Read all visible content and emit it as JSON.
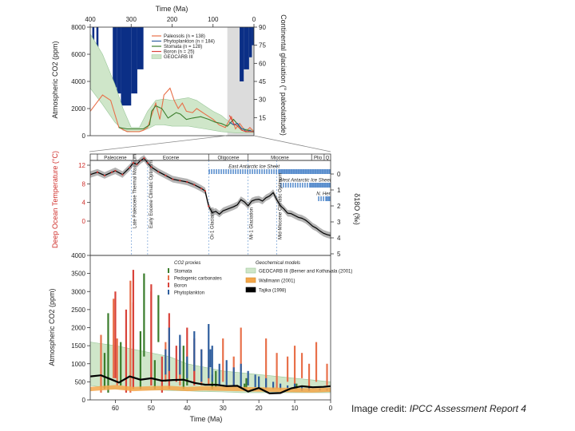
{
  "credit": {
    "prefix": "Image credit: ",
    "source": "IPCC Assessment Report 4"
  },
  "colors": {
    "paleosols": "#e8704a",
    "phytoplankton": "#2f5e9e",
    "stomata": "#3b7d2c",
    "boron": "#d9433b",
    "geocarb": "#cfe6c9",
    "glaciation": "#0b2f86",
    "temp": "#d0312d",
    "wallmann": "#f4a64a",
    "tajika": "#000000"
  },
  "chart_data": [
    {
      "type": "area",
      "title": "Time (Ma)",
      "ylabel": "Atmospheric CO2 (ppm)",
      "y2label": "Continental glaciation (° paleolatitude)",
      "xlim": [
        400,
        0
      ],
      "ylim": [
        0,
        8000
      ],
      "x_ticks": [
        "400",
        "300",
        "200",
        "100",
        "0"
      ],
      "y_ticks": [
        "0",
        "2000",
        "4000",
        "6000",
        "8000"
      ],
      "y2_ticks": [
        "15",
        "30",
        "45",
        "60",
        "75",
        "90"
      ],
      "legend": [
        "Paleosols (n = 138)",
        "Phytoplankton (n = 184)",
        "Stomata (n = 128)",
        "Boron (n = 25)",
        "GEOCARB III"
      ],
      "legend_position": "top-right",
      "geocarb_x": [
        400,
        370,
        340,
        320,
        300,
        280,
        260,
        240,
        220,
        200,
        180,
        160,
        140,
        120,
        100,
        80,
        60,
        40,
        20,
        0
      ],
      "geocarb_low": [
        3500,
        2300,
        1000,
        400,
        300,
        300,
        500,
        800,
        800,
        700,
        700,
        700,
        600,
        500,
        400,
        300,
        250,
        200,
        200,
        200
      ],
      "geocarb_high": [
        7500,
        6000,
        3800,
        2000,
        600,
        600,
        1800,
        2600,
        2700,
        2600,
        2700,
        2800,
        2600,
        2200,
        1800,
        1500,
        1000,
        700,
        500,
        400
      ],
      "series": [
        {
          "name": "Paleosols",
          "x": [
            400,
            385,
            370,
            350,
            330,
            310,
            295,
            280,
            270,
            260,
            250,
            240,
            230,
            220,
            205,
            195,
            185,
            175,
            165,
            150,
            140,
            120,
            100,
            85,
            70,
            55,
            45,
            35,
            20,
            10,
            0
          ],
          "values": [
            1800,
            2400,
            3000,
            2600,
            600,
            300,
            300,
            300,
            400,
            600,
            1500,
            2400,
            1200,
            3000,
            3500,
            2600,
            2000,
            2400,
            1800,
            1700,
            2000,
            1600,
            1200,
            800,
            600,
            1400,
            500,
            900,
            300,
            600,
            300
          ]
        },
        {
          "name": "Stomata",
          "x": [
            330,
            310,
            290,
            270,
            255,
            250,
            240,
            225,
            210,
            200,
            190,
            180,
            165,
            150,
            130,
            110,
            95,
            80,
            65,
            50,
            30,
            15,
            0
          ],
          "values": [
            600,
            500,
            500,
            500,
            800,
            1800,
            2200,
            2000,
            1300,
            1500,
            1700,
            1600,
            1200,
            1300,
            1400,
            1200,
            1000,
            900,
            700,
            1200,
            500,
            400,
            300
          ]
        },
        {
          "name": "Phytoplankton",
          "x": [
            60,
            50,
            40,
            35,
            30,
            25,
            20,
            15,
            10,
            5,
            0
          ],
          "values": [
            1000,
            800,
            900,
            700,
            500,
            500,
            300,
            300,
            400,
            300,
            300
          ]
        },
        {
          "name": "Boron",
          "x": [
            60,
            50,
            45,
            40,
            30,
            20,
            10,
            0
          ],
          "values": [
            1500,
            900,
            800,
            700,
            400,
            300,
            300,
            280
          ]
        }
      ],
      "glaciation": [
        {
          "from": 395,
          "to": 390,
          "paleolatitude": 60
        },
        {
          "from": 385,
          "to": 380,
          "paleolatitude": 60
        },
        {
          "from": 345,
          "to": 335,
          "paleolatitude": 40
        },
        {
          "from": 335,
          "to": 325,
          "paleolatitude": 35
        },
        {
          "from": 325,
          "to": 300,
          "paleolatitude": 25
        },
        {
          "from": 300,
          "to": 285,
          "paleolatitude": 35
        },
        {
          "from": 285,
          "to": 270,
          "paleolatitude": 55
        },
        {
          "from": 35,
          "to": 25,
          "paleolatitude": 45
        },
        {
          "from": 25,
          "to": 12,
          "paleolatitude": 55
        },
        {
          "from": 12,
          "to": 5,
          "paleolatitude": 65
        },
        {
          "from": 5,
          "to": 0,
          "paleolatitude": 75
        }
      ],
      "highlight": {
        "from": 65,
        "to": 0
      }
    },
    {
      "type": "line",
      "ylabel": "Deep Ocean Temperature (°C)",
      "y2label": "δ18O (‰)",
      "xlim": [
        67,
        0
      ],
      "ylim": [
        0,
        14
      ],
      "y_ticks": [
        "0",
        "4",
        "8",
        "12"
      ],
      "y2_ticks": [
        "0",
        "1",
        "2",
        "3",
        "4",
        "5"
      ],
      "epochs": [
        "Paleocene",
        "Eocene",
        "Oligocene",
        "Miocene",
        "Plio",
        "Q"
      ],
      "epoch_bounds": [
        65,
        55,
        34,
        23,
        5.3,
        1.8,
        0
      ],
      "ice_sheet_labels": [
        "East Antarctic Ice Sheet",
        "West Antarctic Ice Sheet",
        "N. Hemisphere Ice Sheets"
      ],
      "event_labels": [
        "Late Paleocene Thermal Maximum",
        "Early Eocene Climatic Optimum",
        "Oi-1 Glaciation",
        "Mi-1 Glaciation",
        "Mid-Miocene Climatic Optimum"
      ],
      "x": [
        67,
        65,
        63,
        61,
        60,
        58,
        56,
        55,
        54,
        53,
        52,
        51,
        50,
        48,
        46,
        44,
        42,
        40,
        38,
        36,
        35,
        34,
        33,
        32,
        31,
        30,
        29,
        28,
        27,
        26,
        25,
        24,
        23,
        22,
        21,
        20,
        19,
        18,
        17,
        16,
        15,
        14,
        13,
        12,
        11,
        10,
        9,
        8,
        7,
        6,
        5,
        4,
        3,
        2,
        1,
        0
      ],
      "values": [
        10,
        10.5,
        9.8,
        10.5,
        10.8,
        10,
        11.5,
        12.5,
        12.2,
        13,
        13.5,
        12.5,
        11.6,
        10.6,
        9.8,
        9,
        8.7,
        8.4,
        7.8,
        7,
        6.5,
        3.2,
        1.8,
        2.1,
        1.5,
        2.2,
        2.5,
        2.8,
        3.1,
        3.5,
        4.6,
        4.1,
        3.3,
        4.3,
        4.6,
        4.7,
        4.3,
        5,
        5.4,
        6.1,
        4.6,
        3.3,
        2.6,
        1.7,
        1.6,
        1.2,
        0.8,
        0.6,
        0.2,
        -0.4,
        -1.1,
        -1.5,
        -2.1,
        -2.6,
        -2.9,
        -3.1
      ]
    },
    {
      "type": "scatter",
      "title": "CO2 proxies",
      "title2": "Geochemical models",
      "xlabel": "Time (Ma)",
      "ylabel": "Atmospheric CO2 (ppm)",
      "xlim": [
        67,
        0
      ],
      "ylim": [
        0,
        4000
      ],
      "x_ticks": [
        "60",
        "50",
        "40",
        "30",
        "20",
        "10",
        "0"
      ],
      "y_ticks": [
        "0",
        "500",
        "1000",
        "1500",
        "2000",
        "2500",
        "3000",
        "3500",
        "4000"
      ],
      "legend_proxies": [
        "Stomata",
        "Pedogenic carbonates",
        "Boron",
        "Phytoplankton"
      ],
      "legend_models": [
        "GEOCARB III (Berner and Kothavala (2001)",
        "Wallmann (2001)",
        "Tajika (1998)"
      ],
      "legend_position": "top-right",
      "geocarb_x": [
        67,
        60,
        55,
        50,
        45,
        40,
        35,
        30,
        25,
        20,
        15,
        10,
        5,
        0
      ],
      "geocarb_low": [
        400,
        300,
        300,
        280,
        260,
        250,
        230,
        220,
        200,
        200,
        200,
        200,
        200,
        200
      ],
      "geocarb_high": [
        1600,
        1500,
        1400,
        1300,
        1200,
        1000,
        900,
        800,
        750,
        700,
        650,
        600,
        550,
        500
      ],
      "proxies": [
        {
          "name": "Stomata",
          "x": [
            63,
            62,
            58.5,
            53,
            52,
            49,
            48,
            41,
            40,
            33,
            32,
            24,
            23.5,
            9.5
          ],
          "low": [
            300,
            200,
            400,
            300,
            1200,
            300,
            1600,
            300,
            400,
            300,
            350,
            300,
            300,
            300
          ],
          "high": [
            1300,
            2400,
            1600,
            1900,
            3500,
            1100,
            2900,
            1500,
            1100,
            700,
            800,
            450,
            600,
            450
          ]
        },
        {
          "name": "Pedogenic carbonates",
          "x": [
            64,
            60.5,
            59.5,
            55.8,
            55,
            50,
            46,
            42,
            38,
            36,
            34,
            30,
            27,
            25,
            18,
            15,
            12,
            10,
            8,
            6,
            4,
            1
          ],
          "low": [
            200,
            600,
            400,
            200,
            300,
            400,
            500,
            400,
            500,
            400,
            400,
            500,
            400,
            800,
            300,
            300,
            500,
            400,
            600,
            300,
            500,
            400
          ],
          "high": [
            1800,
            2800,
            1700,
            3300,
            2700,
            3000,
            1600,
            1500,
            1400,
            1400,
            1100,
            1700,
            1200,
            2000,
            1700,
            1300,
            1200,
            1500,
            1300,
            1000,
            1600,
            1000
          ]
        },
        {
          "name": "Boron",
          "x": [
            60,
            57,
            55,
            50,
            47,
            45,
            43,
            40,
            38
          ],
          "low": [
            600,
            200,
            300,
            400,
            200,
            300,
            500,
            1100,
            400
          ],
          "high": [
            3000,
            2500,
            3600,
            3200,
            1200,
            2400,
            1500,
            2000,
            1700
          ]
        },
        {
          "name": "Phytoplankton",
          "x": [
            46,
            45,
            42,
            40,
            38,
            36,
            34,
            33.5,
            33,
            31,
            29,
            27,
            25,
            23,
            21,
            20,
            18,
            16,
            14,
            12,
            10,
            8,
            6,
            3,
            1
          ],
          "low": [
            700,
            800,
            700,
            600,
            800,
            500,
            600,
            900,
            500,
            400,
            400,
            400,
            350,
            400,
            350,
            350,
            300,
            300,
            280,
            300,
            300,
            250,
            250,
            260,
            260
          ],
          "high": [
            1400,
            2000,
            1800,
            1200,
            1900,
            1400,
            2100,
            1400,
            1500,
            1000,
            1100,
            900,
            1000,
            800,
            700,
            650,
            600,
            500,
            450,
            400,
            450,
            380,
            380,
            320,
            300
          ]
        }
      ],
      "wallmann_x": [
        67,
        60,
        55,
        50,
        45,
        40,
        35,
        30,
        25,
        20,
        15,
        10,
        5,
        0
      ],
      "wallmann_values": [
        300,
        350,
        300,
        320,
        330,
        300,
        320,
        310,
        300,
        290,
        280,
        270,
        260,
        280
      ],
      "tajika_x": [
        67,
        64,
        61,
        59,
        56,
        53,
        50,
        47,
        44,
        41,
        38,
        35,
        32,
        29,
        26,
        23,
        20,
        17,
        14,
        11,
        8,
        5,
        2,
        0
      ],
      "tajika_values": [
        650,
        680,
        560,
        480,
        650,
        560,
        600,
        530,
        550,
        560,
        470,
        420,
        420,
        380,
        390,
        230,
        330,
        180,
        190,
        320,
        380,
        350,
        360,
        380
      ]
    }
  ]
}
